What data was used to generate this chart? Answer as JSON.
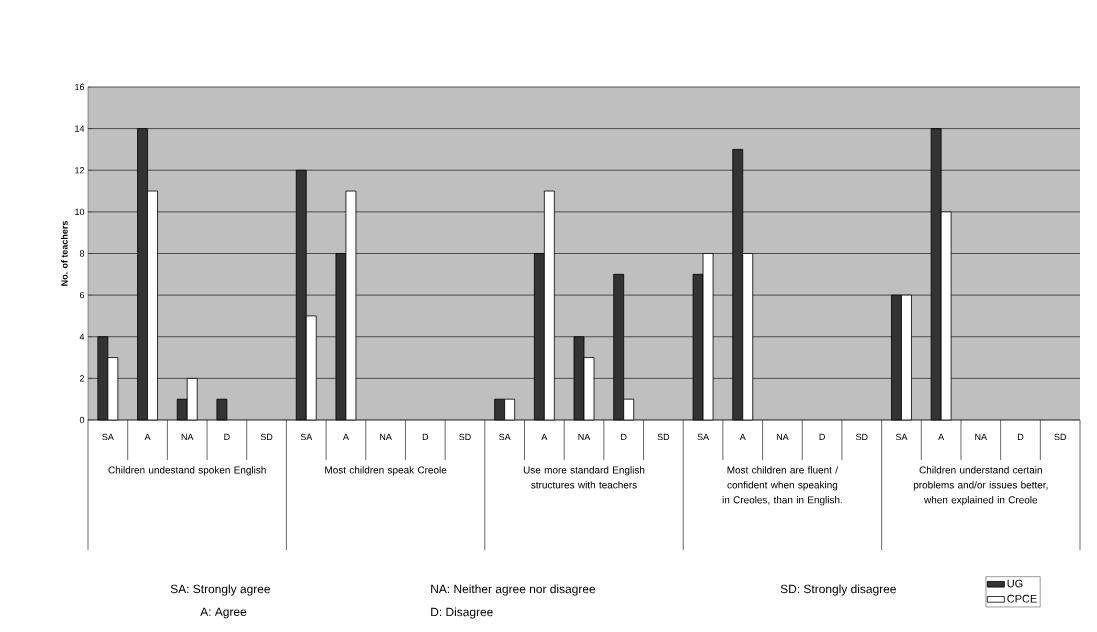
{
  "chart_data": {
    "type": "bar",
    "ylabel": "No. of teachers",
    "categories": [
      "SA",
      "A",
      "NA",
      "D",
      "SD",
      "SA",
      "A",
      "NA",
      "D",
      "SD",
      "SA",
      "A",
      "NA",
      "D",
      "SD",
      "SA",
      "A",
      "NA",
      "D",
      "SD",
      "SA",
      "A",
      "NA",
      "D",
      "SD"
    ],
    "series": [
      {
        "name": "UG",
        "color": "#333333",
        "values": [
          4,
          14,
          1,
          1,
          0,
          12,
          8,
          0,
          0,
          0,
          1,
          8,
          4,
          7,
          0,
          7,
          13,
          0,
          0,
          0,
          6,
          14,
          0,
          0,
          0
        ]
      },
      {
        "name": "CPCE",
        "color": "#ffffff",
        "values": [
          3,
          11,
          2,
          0,
          0,
          5,
          11,
          0,
          0,
          0,
          1,
          11,
          3,
          1,
          0,
          8,
          8,
          0,
          0,
          0,
          6,
          10,
          0,
          0,
          0
        ]
      }
    ],
    "annotations": [
      "Children undestand spoken English",
      "Most children speak Creole",
      "Use more standard English structures with teachers",
      "Most children are fluent / confident when speaking in Creoles, than in English.",
      "Children understand certain problems and/or issues better, when explained in Creole",
      "SA: Strongly agree",
      "A: Agree",
      "NA: Neither agree nor disagree",
      "D: Disagree",
      "SD: Strongly disagree"
    ],
    "ylim": [
      0,
      16
    ],
    "yticks": [
      0,
      2,
      4,
      6,
      8,
      10,
      12,
      14,
      16
    ],
    "grid": "y",
    "legend": "bottom right"
  }
}
